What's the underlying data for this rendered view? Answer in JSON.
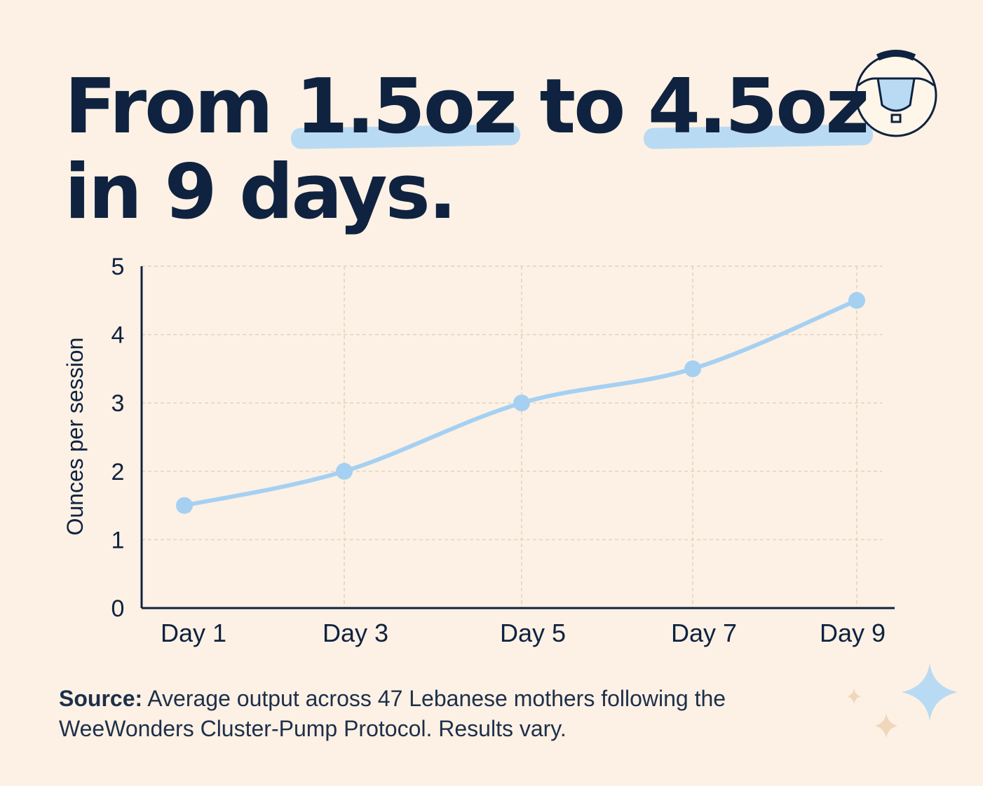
{
  "headline": {
    "part1": "From ",
    "highlight1": "1.5oz",
    "part2": " to ",
    "highlight2": "4.5oz",
    "line2": "in 9 days."
  },
  "badge": {
    "icon": "breast-pump-icon"
  },
  "chart_data": {
    "type": "line",
    "categories": [
      "Day 1",
      "Day 3",
      "Day 5",
      "Day 7",
      "Day 9"
    ],
    "series": [
      {
        "values": [
          1.5,
          2.0,
          3.0,
          3.5,
          4.5
        ]
      }
    ],
    "yticks": [
      "0",
      "1",
      "2",
      "3",
      "4",
      "5"
    ],
    "ylim": [
      0,
      5
    ],
    "xlabel": "",
    "ylabel": "Ounces per session",
    "grid": true,
    "line_color": "#a5d0f2",
    "axis_color": "#0f2240",
    "grid_color": "#e2d3bf"
  },
  "source": {
    "label": "Source:",
    "text": " Average output across 47 Lebanese mothers following the WeeWonders Cluster-Pump Protocol. Results vary."
  },
  "decor": {
    "icon": "sparkles-icon",
    "colors": [
      "#b9daf3",
      "#f0d6bb"
    ]
  }
}
